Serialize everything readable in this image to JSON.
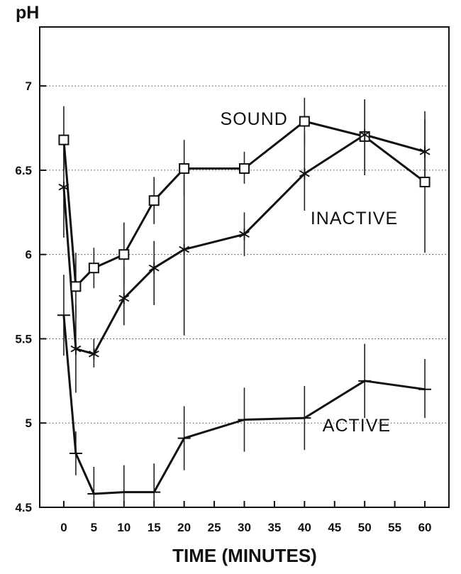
{
  "chart_data": {
    "type": "line",
    "ylabel": "pH",
    "xlabel": "TIME (MINUTES)",
    "xlim": [
      -4,
      64
    ],
    "ylim": [
      4.5,
      7.35
    ],
    "x_ticks": [
      0,
      5,
      10,
      15,
      20,
      25,
      30,
      35,
      40,
      45,
      50,
      55,
      60
    ],
    "y_ticks": [
      4.5,
      5,
      5.5,
      6,
      6.5,
      7
    ],
    "y_tick_labels": [
      "4.5",
      "5",
      "5.5",
      "6",
      "6.5",
      "7"
    ],
    "y_grid": [
      5,
      5.5,
      6,
      6.5,
      7
    ],
    "grid": "horizontal dotted",
    "legend": "none (series labelled inline)",
    "series": [
      {
        "name": "SOUND",
        "marker": "square",
        "label_at": [
          26,
          6.77
        ],
        "points": [
          {
            "x": 0,
            "y": 6.68,
            "lo": 6.5,
            "hi": 6.88
          },
          {
            "x": 2,
            "y": 5.81,
            "lo": 5.62,
            "hi": 6.01
          },
          {
            "x": 5,
            "y": 5.92,
            "lo": 5.8,
            "hi": 6.04
          },
          {
            "x": 10,
            "y": 6.0,
            "lo": 5.82,
            "hi": 6.19
          },
          {
            "x": 15,
            "y": 6.32,
            "lo": 6.18,
            "hi": 6.46
          },
          {
            "x": 20,
            "y": 6.51,
            "lo": 6.35,
            "hi": 6.68
          },
          {
            "x": 30,
            "y": 6.51,
            "lo": 6.42,
            "hi": 6.61
          },
          {
            "x": 40,
            "y": 6.79,
            "lo": 6.65,
            "hi": 6.93
          },
          {
            "x": 50,
            "y": 6.7,
            "lo": 6.47,
            "hi": 6.92
          },
          {
            "x": 60,
            "y": 6.43,
            "lo": 6.01,
            "hi": 6.85
          }
        ]
      },
      {
        "name": "INACTIVE",
        "marker": "asterisk",
        "label_at": [
          41,
          6.18
        ],
        "points": [
          {
            "x": 0,
            "y": 6.4,
            "lo": 6.1,
            "hi": 6.62
          },
          {
            "x": 2,
            "y": 5.44,
            "lo": 5.18,
            "hi": 5.7
          },
          {
            "x": 5,
            "y": 5.41,
            "lo": 5.33,
            "hi": 5.5
          },
          {
            "x": 10,
            "y": 5.74,
            "lo": 5.58,
            "hi": 5.93
          },
          {
            "x": 15,
            "y": 5.92,
            "lo": 5.7,
            "hi": 6.08
          },
          {
            "x": 20,
            "y": 6.03,
            "lo": 5.52,
            "hi": 6.55
          },
          {
            "x": 30,
            "y": 6.12,
            "lo": 5.99,
            "hi": 6.25
          },
          {
            "x": 40,
            "y": 6.48,
            "lo": 6.26,
            "hi": 6.72
          },
          {
            "x": 50,
            "y": 6.71,
            "lo": 6.5,
            "hi": 6.92
          },
          {
            "x": 60,
            "y": 6.61,
            "lo": 6.42,
            "hi": 6.8
          }
        ]
      },
      {
        "name": "ACTIVE",
        "marker": "dash",
        "label_at": [
          43,
          4.95
        ],
        "points": [
          {
            "x": 0,
            "y": 5.64,
            "lo": 5.4,
            "hi": 5.88
          },
          {
            "x": 2,
            "y": 4.82,
            "lo": 4.69,
            "hi": 4.95
          },
          {
            "x": 5,
            "y": 4.58,
            "lo": 4.5,
            "hi": 4.74
          },
          {
            "x": 10,
            "y": 4.59,
            "lo": 4.5,
            "hi": 4.75
          },
          {
            "x": 15,
            "y": 4.59,
            "lo": 4.5,
            "hi": 4.76
          },
          {
            "x": 20,
            "y": 4.91,
            "lo": 4.72,
            "hi": 5.1
          },
          {
            "x": 30,
            "y": 5.02,
            "lo": 4.83,
            "hi": 5.21
          },
          {
            "x": 40,
            "y": 5.03,
            "lo": 4.84,
            "hi": 5.22
          },
          {
            "x": 50,
            "y": 5.25,
            "lo": 5.03,
            "hi": 5.47
          },
          {
            "x": 60,
            "y": 5.2,
            "lo": 5.03,
            "hi": 5.38
          }
        ]
      }
    ]
  }
}
